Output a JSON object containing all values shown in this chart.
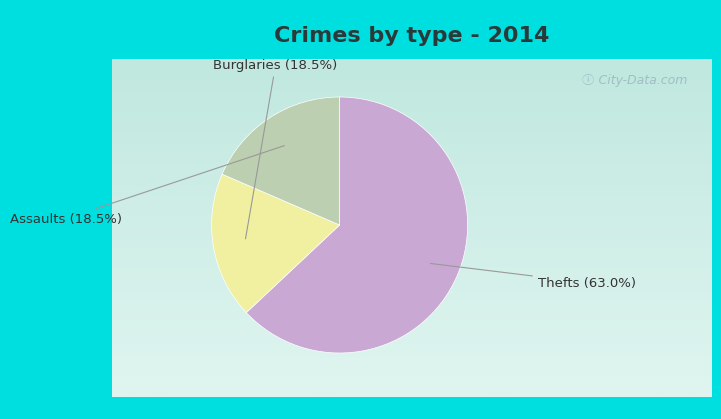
{
  "title": "Crimes by type - 2014",
  "slices": [
    {
      "label": "Thefts (63.0%)",
      "value": 63.0,
      "color": "#C9A8D4"
    },
    {
      "label": "Burglaries (18.5%)",
      "value": 18.5,
      "color": "#F0F0A0"
    },
    {
      "label": "Assaults (18.5%)",
      "value": 18.5,
      "color": "#BCCFB0"
    }
  ],
  "startangle": 90,
  "background_top": "#00DFDF",
  "background_main_top": "#D8F0EC",
  "background_main_bottom": "#E8F8F4",
  "title_fontsize": 16,
  "title_fontweight": "bold",
  "label_fontsize": 9.5,
  "watermark_text": "ⓘ City-Data.com"
}
